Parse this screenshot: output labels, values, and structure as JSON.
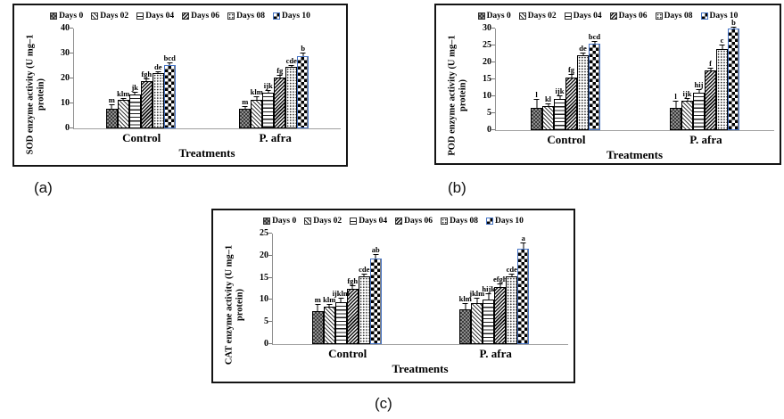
{
  "style": {
    "days10_border_color": "#4472c4",
    "bar_outline_color": "#000000",
    "axis_color": "#909090",
    "series_patterns": [
      "dark-checker",
      "diagonal-lines",
      "horizontal-lines",
      "dense-crosshatch",
      "dots",
      "checkerboard-blue-border"
    ]
  },
  "chart_data": [
    {
      "id": "a",
      "type": "bar",
      "panel_label": "(a)",
      "ylabel": "SOD enzyme activity (U mg–1 protein)",
      "xlabel": "Treatments",
      "categories": [
        "Control",
        "P. afra"
      ],
      "ylim": [
        0,
        40
      ],
      "yticks": [
        0,
        10,
        20,
        30,
        40
      ],
      "legend_position": "top",
      "grid": false,
      "series": [
        {
          "name": "Days 0",
          "values": [
            8.0,
            8.0
          ],
          "errors": [
            1.5,
            1.0
          ],
          "letters": [
            "m",
            "m"
          ]
        },
        {
          "name": "Days 02",
          "values": [
            11.3,
            11.5
          ],
          "errors": [
            0.8,
            1.2
          ],
          "letters": [
            "klm",
            "klm"
          ]
        },
        {
          "name": "Days 04",
          "values": [
            13.5,
            14.3
          ],
          "errors": [
            1.2,
            1.0
          ],
          "letters": [
            "jk",
            "ijk"
          ]
        },
        {
          "name": "Days 06",
          "values": [
            18.8,
            20.3
          ],
          "errors": [
            1.2,
            1.3
          ],
          "letters": [
            "fgh",
            "fg"
          ]
        },
        {
          "name": "Days 08",
          "values": [
            22.0,
            24.5
          ],
          "errors": [
            0.8,
            1.0
          ],
          "letters": [
            "de",
            "cde"
          ]
        },
        {
          "name": "Days 10",
          "values": [
            25.5,
            29.0
          ],
          "errors": [
            1.0,
            1.5
          ],
          "letters": [
            "bcd",
            "b"
          ]
        }
      ]
    },
    {
      "id": "b",
      "type": "bar",
      "panel_label": "(b)",
      "ylabel": "POD enzyme activity (U mg–1 protein)",
      "xlabel": "Treatments",
      "categories": [
        "Control",
        "P. afra"
      ],
      "ylim": [
        0,
        30
      ],
      "yticks": [
        0,
        5,
        10,
        15,
        20,
        25,
        30
      ],
      "legend_position": "top",
      "grid": false,
      "series": [
        {
          "name": "Days 0",
          "values": [
            6.7,
            6.7
          ],
          "errors": [
            2.4,
            2.0
          ],
          "letters": [
            "l",
            "l"
          ]
        },
        {
          "name": "Days 02",
          "values": [
            7.0,
            8.6
          ],
          "errors": [
            0.8,
            1.0
          ],
          "letters": [
            "kl",
            "ijk"
          ]
        },
        {
          "name": "Days 04",
          "values": [
            9.3,
            11.0
          ],
          "errors": [
            1.0,
            1.2
          ],
          "letters": [
            "ijk",
            "hij"
          ]
        },
        {
          "name": "Days 06",
          "values": [
            15.6,
            17.7
          ],
          "errors": [
            1.0,
            0.8
          ],
          "letters": [
            "fg",
            "f"
          ]
        },
        {
          "name": "Days 08",
          "values": [
            22.2,
            24.0
          ],
          "errors": [
            0.8,
            1.2
          ],
          "letters": [
            "de",
            "c"
          ]
        },
        {
          "name": "Days 10",
          "values": [
            25.6,
            30.0
          ],
          "errors": [
            0.8,
            0.5
          ],
          "letters": [
            "bcd",
            "b"
          ]
        }
      ]
    },
    {
      "id": "c",
      "type": "bar",
      "panel_label": "(c)",
      "ylabel": "CAT enzyme activity (U mg–1 protein)",
      "xlabel": "Treatments",
      "categories": [
        "Control",
        "P. afra"
      ],
      "ylim": [
        0,
        25
      ],
      "yticks": [
        0,
        5,
        10,
        15,
        20,
        25
      ],
      "legend_position": "top",
      "grid": false,
      "series": [
        {
          "name": "Days 0",
          "values": [
            7.5,
            7.9
          ],
          "errors": [
            1.5,
            1.3
          ],
          "letters": [
            "m",
            "klm"
          ]
        },
        {
          "name": "Days 02",
          "values": [
            8.4,
            9.2
          ],
          "errors": [
            0.6,
            1.3
          ],
          "letters": [
            "klm",
            "jklm"
          ]
        },
        {
          "name": "Days 04",
          "values": [
            9.4,
            10.0
          ],
          "errors": [
            1.0,
            1.4
          ],
          "letters": [
            "ijklm",
            "hijk"
          ]
        },
        {
          "name": "Days 06",
          "values": [
            12.6,
            13.0
          ],
          "errors": [
            0.8,
            0.8
          ],
          "letters": [
            "fgh",
            "efgh"
          ]
        },
        {
          "name": "Days 08",
          "values": [
            15.3,
            15.4
          ],
          "errors": [
            0.6,
            0.5
          ],
          "letters": [
            "cde",
            "cde"
          ]
        },
        {
          "name": "Days 10",
          "values": [
            19.3,
            21.5
          ],
          "errors": [
            1.0,
            1.4
          ],
          "letters": [
            "ab",
            "a"
          ]
        }
      ]
    }
  ]
}
